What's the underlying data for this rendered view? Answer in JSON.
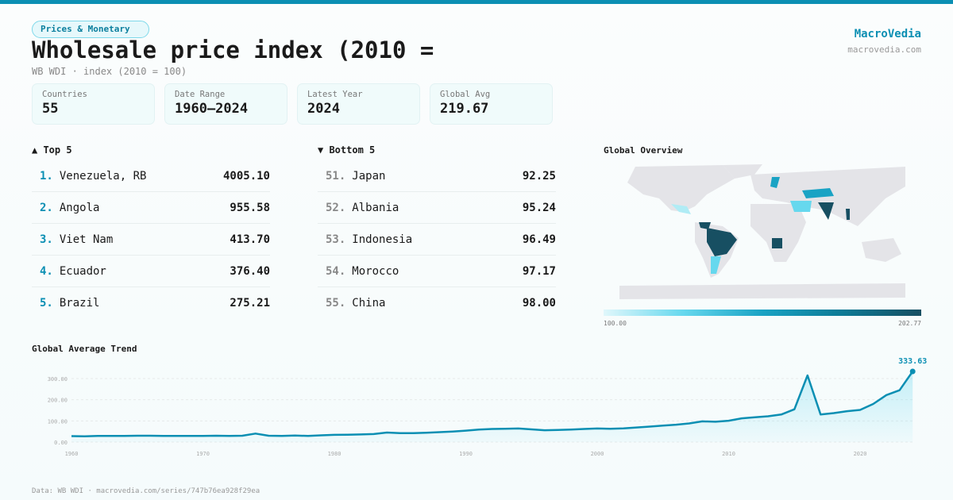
{
  "header": {
    "category": "Prices & Monetary",
    "title": "Wholesale price index (2010 =",
    "subtitle": "WB WDI · index (2010 = 100)",
    "brand": "MacroVedia",
    "brand_url": "macrovedia.com"
  },
  "stats": [
    {
      "label": "Countries",
      "value": "55"
    },
    {
      "label": "Date Range",
      "value": "1960–2024"
    },
    {
      "label": "Latest Year",
      "value": "2024"
    },
    {
      "label": "Global Avg",
      "value": "219.67"
    }
  ],
  "top5": {
    "title": "▲ Top 5",
    "items": [
      {
        "rank": "1.",
        "name": "Venezuela, RB",
        "value": "4005.10"
      },
      {
        "rank": "2.",
        "name": "Angola",
        "value": "955.58"
      },
      {
        "rank": "3.",
        "name": "Viet Nam",
        "value": "413.70"
      },
      {
        "rank": "4.",
        "name": "Ecuador",
        "value": "376.40"
      },
      {
        "rank": "5.",
        "name": "Brazil",
        "value": "275.21"
      }
    ]
  },
  "bottom5": {
    "title": "▼ Bottom 5",
    "items": [
      {
        "rank": "51.",
        "name": "Japan",
        "value": "92.25"
      },
      {
        "rank": "52.",
        "name": "Albania",
        "value": "95.24"
      },
      {
        "rank": "53.",
        "name": "Indonesia",
        "value": "96.49"
      },
      {
        "rank": "54.",
        "name": "Morocco",
        "value": "97.17"
      },
      {
        "rank": "55.",
        "name": "China",
        "value": "98.00"
      }
    ]
  },
  "map": {
    "title": "Global Overview",
    "legend_min": "100.00",
    "legend_max": "202.77",
    "colors": [
      "#e0f7fb",
      "#66d8ee",
      "#1aa3c4",
      "#0d7a95",
      "#174f62"
    ]
  },
  "footer": "Data: WB WDI · macrovedia.com/series/747b76ea928f29ea",
  "chart_data": {
    "type": "area",
    "title": "Global Average Trend",
    "accent": "#0b8fb3",
    "x_ticks": [
      "1960",
      "1970",
      "1980",
      "1990",
      "2000",
      "2010",
      "2020"
    ],
    "y_ticks": [
      "0.00",
      "100.00",
      "200.00",
      "300.00"
    ],
    "ylim": [
      0,
      300
    ],
    "xlim": [
      1960,
      2024
    ],
    "grid": true,
    "last_label": "333.63",
    "x": [
      1960,
      1961,
      1962,
      1963,
      1964,
      1965,
      1966,
      1967,
      1968,
      1969,
      1970,
      1971,
      1972,
      1973,
      1974,
      1975,
      1976,
      1977,
      1978,
      1979,
      1980,
      1981,
      1982,
      1983,
      1984,
      1985,
      1986,
      1987,
      1988,
      1989,
      1990,
      1991,
      1992,
      1993,
      1994,
      1995,
      1996,
      1997,
      1998,
      1999,
      2000,
      2001,
      2002,
      2003,
      2004,
      2005,
      2006,
      2007,
      2008,
      2009,
      2010,
      2011,
      2012,
      2013,
      2014,
      2015,
      2016,
      2017,
      2018,
      2019,
      2020,
      2021,
      2022,
      2023,
      2024
    ],
    "values": [
      28,
      27,
      29,
      29,
      29,
      30,
      30,
      29,
      29,
      29,
      29,
      30,
      29,
      30,
      40,
      30,
      29,
      31,
      29,
      32,
      34,
      35,
      36,
      38,
      45,
      42,
      42,
      44,
      47,
      50,
      54,
      59,
      62,
      63,
      64,
      60,
      56,
      57,
      59,
      62,
      64,
      63,
      65,
      69,
      73,
      78,
      82,
      88,
      98,
      96,
      101,
      112,
      117,
      122,
      130,
      155,
      315,
      130,
      137,
      146,
      152,
      180,
      222,
      245,
      333.63
    ]
  }
}
